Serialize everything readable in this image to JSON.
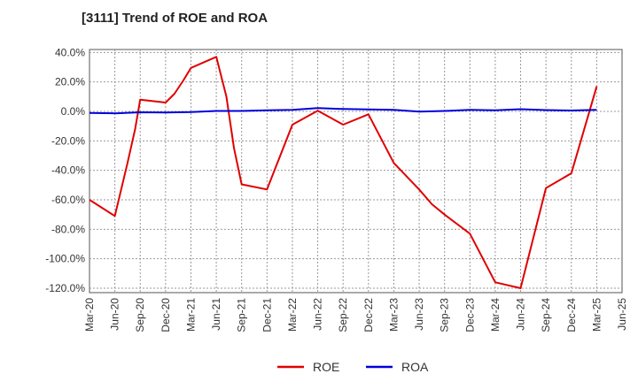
{
  "chart_data": {
    "type": "line",
    "title": "[3111]  Trend of ROE and ROA",
    "xlabel": "",
    "ylabel": "",
    "ylim": [
      -123,
      42
    ],
    "yticks": [
      40,
      20,
      0,
      -20,
      -40,
      -60,
      -80,
      -100,
      -120
    ],
    "ytick_labels": [
      "40.0%",
      "20.0%",
      "0.0%",
      "-20.0%",
      "-40.0%",
      "-60.0%",
      "-80.0%",
      "-100.0%",
      "-120.0%"
    ],
    "x_tick_labels": [
      "Mar-20",
      "Jun-20",
      "Sep-20",
      "Dec-20",
      "Mar-21",
      "Jun-21",
      "Sep-21",
      "Dec-21",
      "Mar-22",
      "Jun-22",
      "Sep-22",
      "Dec-22",
      "Mar-23",
      "Jun-23",
      "Sep-23",
      "Dec-23",
      "Mar-24",
      "Jun-24",
      "Sep-24",
      "Dec-24",
      "Mar-25",
      "Jun-25"
    ],
    "grid": true,
    "legend_position": "bottom-center",
    "series": [
      {
        "name": "ROE",
        "color": "#e00000",
        "points": [
          [
            0,
            -60
          ],
          [
            1,
            -71
          ],
          [
            1.5,
            -35
          ],
          [
            1.8,
            -12
          ],
          [
            2,
            8
          ],
          [
            3,
            6
          ],
          [
            3.35,
            12
          ],
          [
            3.7,
            21
          ],
          [
            4,
            29.5
          ],
          [
            5,
            37
          ],
          [
            5.4,
            10
          ],
          [
            5.7,
            -25
          ],
          [
            6,
            -49.5
          ],
          [
            7,
            -53
          ],
          [
            8,
            -9
          ],
          [
            9,
            0.5
          ],
          [
            10,
            -9
          ],
          [
            11,
            -2
          ],
          [
            12,
            -35
          ],
          [
            13,
            -53
          ],
          [
            13.5,
            -63
          ],
          [
            14,
            -70
          ],
          [
            15,
            -83
          ],
          [
            16,
            -116
          ],
          [
            17,
            -120
          ],
          [
            18,
            -52
          ],
          [
            19,
            -42
          ],
          [
            20,
            17
          ]
        ]
      },
      {
        "name": "ROA",
        "color": "#0000dd",
        "points": [
          [
            0,
            -1
          ],
          [
            1,
            -1.3
          ],
          [
            2,
            -0.6
          ],
          [
            3,
            -0.8
          ],
          [
            4,
            -0.5
          ],
          [
            5,
            0.3
          ],
          [
            6,
            0.3
          ],
          [
            7,
            0.7
          ],
          [
            8,
            1
          ],
          [
            9,
            2.2
          ],
          [
            10,
            1.6
          ],
          [
            11,
            1.4
          ],
          [
            12,
            1
          ],
          [
            13,
            -0.2
          ],
          [
            14,
            0.3
          ],
          [
            15,
            1
          ],
          [
            16,
            0.8
          ],
          [
            17,
            1.5
          ],
          [
            18,
            0.9
          ],
          [
            19,
            0.6
          ],
          [
            20,
            1.1
          ]
        ]
      }
    ]
  }
}
